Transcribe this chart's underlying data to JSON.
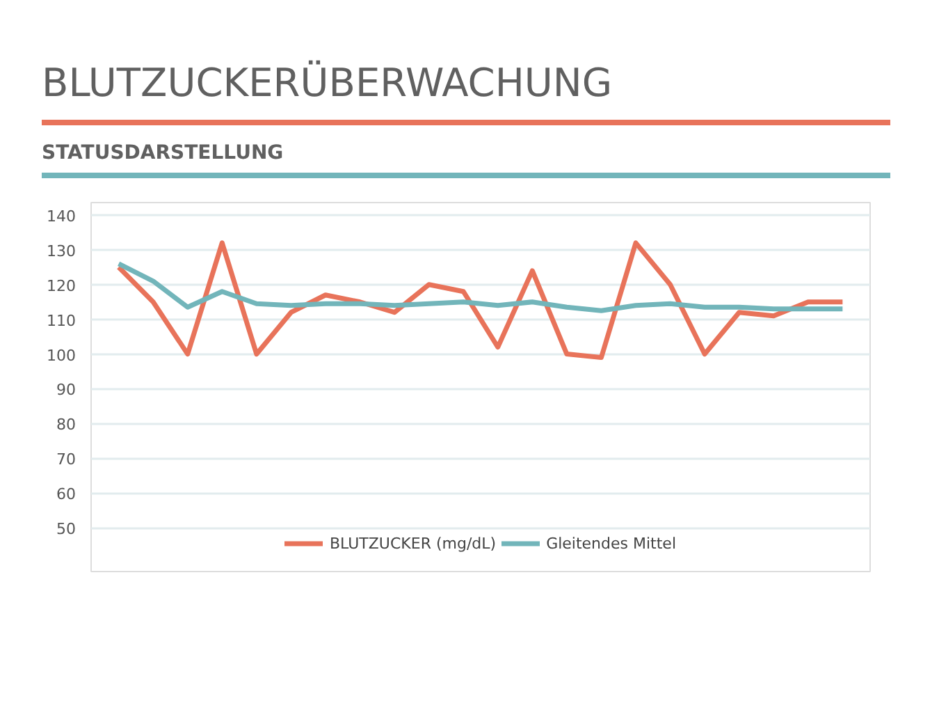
{
  "chart_data": {
    "type": "line",
    "title": "BLUTZUCKERÜBERWACHUNG",
    "subtitle": "STATUSDARSTELLUNG",
    "categories": [
      null,
      null,
      null,
      null,
      null,
      null,
      null,
      null,
      null,
      null,
      null,
      null,
      null,
      null,
      null,
      null,
      null,
      null,
      null,
      null,
      null,
      null
    ],
    "series": [
      {
        "name": "BLUTZUCKER (mg/dL)",
        "color": "#e8735a",
        "values": [
          125,
          115,
          100,
          132,
          100,
          112,
          117,
          115,
          112,
          120,
          118,
          102,
          124,
          100,
          99,
          132,
          120,
          100,
          112,
          111,
          115,
          115
        ]
      },
      {
        "name": "Gleitendes Mittel",
        "color": "#72b5ba",
        "values": [
          126,
          121,
          113.5,
          118,
          114.5,
          114,
          114.5,
          114.5,
          114,
          114.5,
          115,
          114,
          115,
          113.5,
          112.5,
          114,
          114.5,
          113.5,
          113.5,
          113,
          113,
          113
        ]
      }
    ],
    "ylim": [
      50,
      140
    ],
    "yticks": [
      50,
      60,
      70,
      80,
      90,
      100,
      110,
      120,
      130,
      140
    ],
    "grid": "y",
    "legend": "bottom",
    "tick_labels": "y",
    "line_style": "solid",
    "marker": "none"
  }
}
